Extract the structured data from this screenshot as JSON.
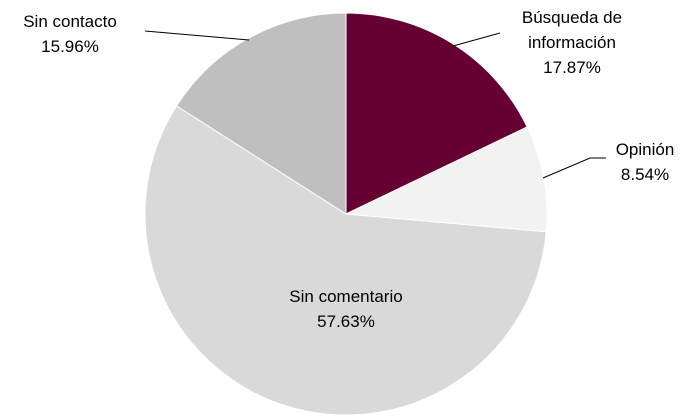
{
  "chart_data": {
    "type": "pie",
    "categories": [
      "Búsqueda de información",
      "Opinión",
      "Sin comentario",
      "Sin contacto"
    ],
    "values": [
      17.87,
      8.54,
      57.63,
      15.96
    ],
    "value_labels": [
      "17.87%",
      "8.54%",
      "57.63%",
      "15.96%"
    ],
    "colors": [
      "#660033",
      "#f2f2f2",
      "#d9d9d9",
      "#bfbfbf"
    ]
  }
}
